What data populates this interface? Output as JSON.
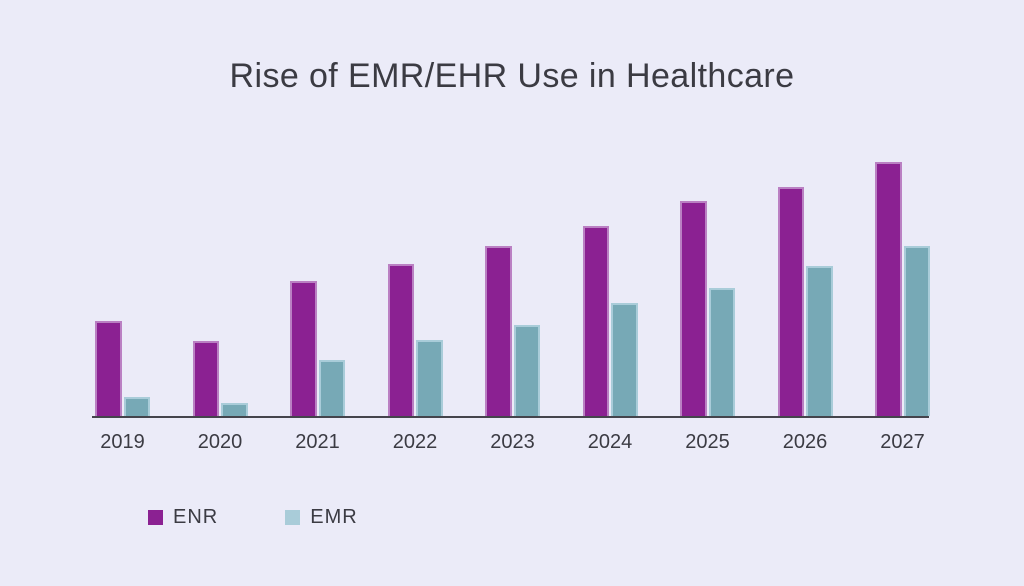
{
  "title": "Rise of EMR/EHR Use in Healthcare",
  "legend": {
    "items": [
      {
        "label": "ENR",
        "swatch_color": "#8B2192"
      },
      {
        "label": "EMR",
        "swatch_color": "#A9CCD9"
      }
    ]
  },
  "colors": {
    "background": "#EBEBF8",
    "title_text": "#3B3B43",
    "tick_text": "#3B3B43",
    "axis_line": "#44444C",
    "enr_bar_fill": "#8B2192",
    "enr_bar_border": "#BA80C3",
    "emr_bar_fill": "#77A9B6",
    "emr_bar_border": "#A9CCD9"
  },
  "chart_data": {
    "type": "bar",
    "title": "Rise of EMR/EHR Use in Healthcare",
    "categories": [
      "2019",
      "2020",
      "2021",
      "2022",
      "2023",
      "2024",
      "2025",
      "2026",
      "2027"
    ],
    "series": [
      {
        "name": "ENR",
        "color": "#8B2192",
        "border_color": "#BA80C3",
        "values": [
          37.5,
          29.5,
          53,
          60,
          67,
          75,
          84.5,
          90,
          100
        ]
      },
      {
        "name": "EMR",
        "color": "#77A9B6",
        "border_color": "#A9CCD9",
        "values": [
          7.5,
          5,
          22,
          30,
          36,
          44.5,
          50.5,
          59,
          67
        ]
      }
    ],
    "xlabel": "",
    "ylabel": "",
    "ylim": [
      0,
      100
    ],
    "grid": false,
    "y_axis_visible": false,
    "legend_position": "bottom-left"
  }
}
